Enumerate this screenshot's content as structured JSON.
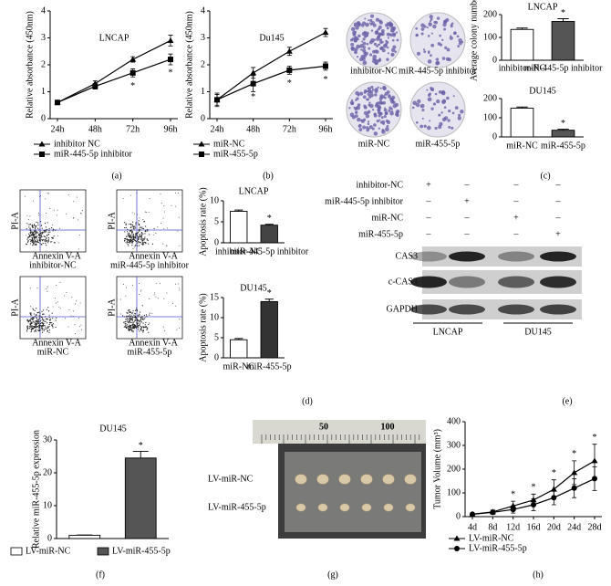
{
  "chart_data": [
    {
      "type": "line",
      "title": "LNCAP",
      "ylabel": "Relative absorbance (450nm)",
      "categories": [
        "24h",
        "48h",
        "72h",
        "96h"
      ],
      "ylim": [
        0,
        4
      ],
      "yticks": [
        0,
        1,
        2,
        3,
        4
      ],
      "annotation_position": "below",
      "series": [
        {
          "name": "inhibitor NC",
          "marker": "triangle",
          "color": "#000000",
          "values": [
            0.6,
            1.3,
            2.2,
            2.9
          ],
          "errors": [
            0.08,
            0.1,
            0.1,
            0.2
          ]
        },
        {
          "name": "miR-445-5p inhibitor",
          "marker": "square",
          "color": "#000000",
          "values": [
            0.6,
            1.2,
            1.7,
            2.2
          ],
          "errors": [
            0.08,
            0.1,
            0.15,
            0.2
          ]
        }
      ],
      "annotations": [
        null,
        null,
        "*",
        "*"
      ]
    },
    {
      "type": "line",
      "title": "Du145",
      "ylabel": "Relative absorbance (450nm)",
      "categories": [
        "24h",
        "48h",
        "72h",
        "96h"
      ],
      "ylim": [
        0,
        4
      ],
      "yticks": [
        0,
        1,
        2,
        3,
        4
      ],
      "annotation_position": "below",
      "series": [
        {
          "name": "miR-NC",
          "marker": "triangle",
          "color": "#000000",
          "values": [
            0.7,
            1.7,
            2.5,
            3.2
          ],
          "errors": [
            0.2,
            0.2,
            0.15,
            0.15
          ]
        },
        {
          "name": "miR-455-5p",
          "marker": "square",
          "color": "#000000",
          "values": [
            0.7,
            1.3,
            1.8,
            1.95
          ],
          "errors": [
            0.25,
            0.3,
            0.15,
            0.15
          ]
        }
      ],
      "annotations": [
        null,
        "*",
        "*",
        "*"
      ]
    },
    {
      "type": "bar",
      "title": "LNCAP",
      "ylabel": "Average colony number",
      "categories": [
        "inhibitor-NC",
        "miR-445-5p inhibitor"
      ],
      "values": [
        135,
        170
      ],
      "errors": [
        6,
        12
      ],
      "colors": [
        "#ffffff",
        "#555555"
      ],
      "ylim": [
        0,
        200
      ],
      "yticks": [
        0,
        100,
        200
      ],
      "annotations": [
        null,
        "*"
      ]
    },
    {
      "type": "bar",
      "title": "DU145",
      "categories": [
        "miR-NC",
        "miR-455-5p"
      ],
      "values": [
        150,
        35
      ],
      "errors": [
        6,
        5
      ],
      "colors": [
        "#ffffff",
        "#555555"
      ],
      "ylim": [
        0,
        200
      ],
      "yticks": [
        0,
        100,
        200
      ],
      "annotations": [
        null,
        "*"
      ]
    },
    {
      "type": "bar",
      "title": "LNCAP",
      "ylabel": "Apoptosis rate (%)",
      "categories": [
        "inhibitor-NC",
        "miR-445-5p inhibitor"
      ],
      "values": [
        7.5,
        4.2
      ],
      "errors": [
        0.3,
        0.2
      ],
      "colors": [
        "#ffffff",
        "#444444"
      ],
      "ylim": [
        0,
        10
      ],
      "yticks": [
        0,
        5,
        10
      ],
      "annotations": [
        null,
        "*"
      ]
    },
    {
      "type": "bar",
      "title": "DU145",
      "ylabel": "Apoptosis rate (%)",
      "categories": [
        "miR-NC",
        "miR-455-5p"
      ],
      "values": [
        4.5,
        14
      ],
      "errors": [
        0.3,
        0.6
      ],
      "colors": [
        "#ffffff",
        "#333333"
      ],
      "ylim": [
        0,
        15
      ],
      "yticks": [
        0,
        5,
        10,
        15
      ],
      "annotations": [
        null,
        "*"
      ]
    },
    {
      "type": "bar",
      "title": "DU145",
      "ylabel": "Relative miR-455-5p expression",
      "categories": [
        "LV-miR-NC",
        "LV-miR-455-5p"
      ],
      "values": [
        1,
        24.5
      ],
      "errors": [
        0.1,
        2
      ],
      "colors": [
        "#ffffff",
        "#555555"
      ],
      "ylim": [
        0,
        30
      ],
      "yticks": [
        0,
        10,
        20,
        30
      ],
      "legend": true,
      "annotations": [
        null,
        "*"
      ]
    },
    {
      "type": "line",
      "ylabel": "Tumor Volume (mm³)",
      "categories": [
        "4d",
        "8d",
        "12d",
        "16d",
        "20d",
        "24d",
        "28d"
      ],
      "ylim": [
        0,
        400
      ],
      "yticks": [
        0,
        100,
        200,
        300,
        400
      ],
      "annotation_position": "above",
      "series": [
        {
          "name": "LV-miR-NC",
          "marker": "triangle",
          "color": "#000000",
          "values": [
            10,
            20,
            45,
            70,
            115,
            185,
            235
          ],
          "errors": [
            5,
            8,
            20,
            25,
            40,
            50,
            70
          ]
        },
        {
          "name": "LV-miR-455-5p",
          "marker": "circle",
          "color": "#000000",
          "values": [
            10,
            18,
            30,
            50,
            80,
            120,
            160
          ],
          "errors": [
            5,
            8,
            15,
            25,
            30,
            40,
            50
          ]
        }
      ],
      "annotations": [
        null,
        null,
        "*",
        "*",
        "*",
        "*",
        "*"
      ]
    }
  ],
  "panels": [
    "(a)",
    "(b)",
    "(c)",
    "(d)",
    "(e)",
    "(f)",
    "(g)",
    "(h)"
  ],
  "plates": {
    "labels": [
      "inhibitor-NC",
      "miR-445-5p inhibitor",
      "miR-NC",
      "miR-455-5p"
    ]
  },
  "flow": {
    "labels": [
      "inhibitor-NC",
      "miR-445-5p inhibitor",
      "miR-NC",
      "miR-455-5p"
    ],
    "x_axis": "Annexin V-A",
    "y_axis": "PI-A"
  },
  "blot": {
    "rows": [
      "inhibitor-NC",
      "miR-445-5p inhibitor",
      "miR-NC",
      "miR-455-5p"
    ],
    "matrix": [
      [
        "+",
        "–",
        "–",
        "–"
      ],
      [
        "–",
        "+",
        "–",
        "–"
      ],
      [
        "–",
        "–",
        "+",
        "–"
      ],
      [
        "–",
        "–",
        "–",
        "+"
      ]
    ],
    "bands": [
      "CAS3",
      "c-CAS3",
      "GAPDH"
    ],
    "groups": [
      "LNCAP",
      "DU145"
    ]
  },
  "tumor": {
    "ruler": [
      "50",
      "100"
    ],
    "rows": [
      "LV-miR-NC",
      "LV-miR-455-5p"
    ]
  }
}
